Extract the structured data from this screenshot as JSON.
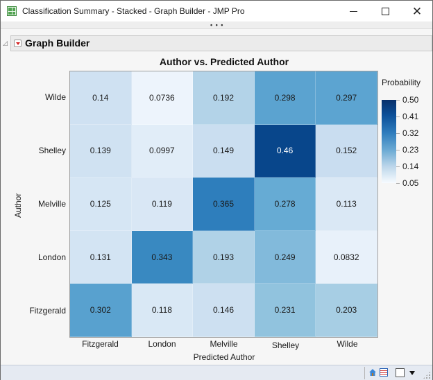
{
  "window": {
    "title": "Classification Summary - Stacked - Graph Builder - JMP Pro",
    "buttons": {
      "minimize": "minimize",
      "maximize": "maximize",
      "close": "close"
    },
    "grip": "• • •"
  },
  "outline": {
    "title": "Graph Builder",
    "disclosure_glyph": "◿"
  },
  "chart": {
    "title": "Author vs. Predicted Author",
    "y_axis_title": "Author",
    "x_axis_title": "Predicted Author",
    "y_labels": [
      "Wilde",
      "Shelley",
      "Melville",
      "London",
      "Fitzgerald"
    ],
    "x_labels": [
      "Fitzgerald",
      "London",
      "Melville",
      "Shelley",
      "Wilde"
    ],
    "rows": [
      {
        "label": "Wilde",
        "cells": [
          {
            "value": "0.14",
            "color": "#cfe1f2"
          },
          {
            "value": "0.0736",
            "color": "#edf4fc"
          },
          {
            "value": "0.192",
            "color": "#b3d3e8"
          },
          {
            "value": "0.298",
            "color": "#5ba3d0"
          },
          {
            "value": "0.297",
            "color": "#5ca4d1"
          }
        ]
      },
      {
        "label": "Shelley",
        "cells": [
          {
            "value": "0.139",
            "color": "#d0e2f2"
          },
          {
            "value": "0.0997",
            "color": "#e1edf8"
          },
          {
            "value": "0.149",
            "color": "#cadef0"
          },
          {
            "value": "0.46",
            "color": "#08468b",
            "dark": true
          },
          {
            "value": "0.152",
            "color": "#c9ddf0"
          }
        ]
      },
      {
        "label": "Melville",
        "cells": [
          {
            "value": "0.125",
            "color": "#d6e6f4"
          },
          {
            "value": "0.119",
            "color": "#d9e7f5"
          },
          {
            "value": "0.365",
            "color": "#2e7ebc"
          },
          {
            "value": "0.278",
            "color": "#66abd4"
          },
          {
            "value": "0.113",
            "color": "#dae8f5"
          }
        ]
      },
      {
        "label": "London",
        "cells": [
          {
            "value": "0.131",
            "color": "#d3e4f3"
          },
          {
            "value": "0.343",
            "color": "#3989c1"
          },
          {
            "value": "0.193",
            "color": "#b0d2e7"
          },
          {
            "value": "0.249",
            "color": "#82badb"
          },
          {
            "value": "0.0832",
            "color": "#e8f1fa"
          }
        ]
      },
      {
        "label": "Fitzgerald",
        "cells": [
          {
            "value": "0.302",
            "color": "#58a1cf"
          },
          {
            "value": "0.118",
            "color": "#d9e8f5"
          },
          {
            "value": "0.146",
            "color": "#cde0f1"
          },
          {
            "value": "0.231",
            "color": "#91c3de"
          },
          {
            "value": "0.203",
            "color": "#a7cee4"
          }
        ]
      }
    ],
    "legend": {
      "title": "Probability",
      "ticks": [
        "0.50",
        "0.41",
        "0.32",
        "0.23",
        "0.14",
        "0.05"
      ]
    }
  },
  "chart_data": {
    "type": "heatmap",
    "title": "Author vs. Predicted Author",
    "xlabel": "Predicted Author",
    "ylabel": "Author",
    "x": [
      "Fitzgerald",
      "London",
      "Melville",
      "Shelley",
      "Wilde"
    ],
    "y": [
      "Wilde",
      "Shelley",
      "Melville",
      "London",
      "Fitzgerald"
    ],
    "values": [
      [
        0.14,
        0.0736,
        0.192,
        0.298,
        0.297
      ],
      [
        0.139,
        0.0997,
        0.149,
        0.46,
        0.152
      ],
      [
        0.125,
        0.119,
        0.365,
        0.278,
        0.113
      ],
      [
        0.131,
        0.343,
        0.193,
        0.249,
        0.0832
      ],
      [
        0.302,
        0.118,
        0.146,
        0.231,
        0.203
      ]
    ],
    "colorbar": {
      "title": "Probability",
      "range": [
        0.05,
        0.5
      ],
      "ticks": [
        0.5,
        0.41,
        0.32,
        0.23,
        0.14,
        0.05
      ],
      "colormap": "Blues"
    },
    "legend_position": "right",
    "grid": false
  },
  "status_bar": {
    "icons": [
      "home-icon",
      "data-table-icon",
      "checkbox",
      "dropdown-arrow"
    ]
  }
}
